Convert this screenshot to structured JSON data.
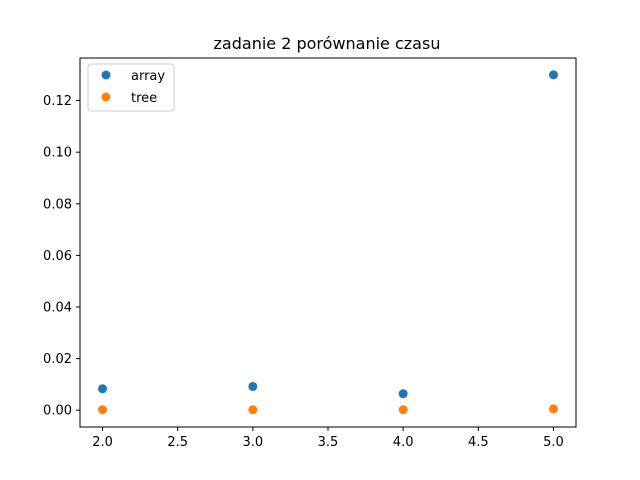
{
  "chart_data": {
    "type": "scatter",
    "title": "zadanie 2 porównanie czasu",
    "xlabel": "",
    "ylabel": "",
    "xlim": [
      1.85,
      5.15
    ],
    "ylim": [
      -0.0065,
      0.1365
    ],
    "x_ticks": [
      2.0,
      2.5,
      3.0,
      3.5,
      4.0,
      4.5,
      5.0
    ],
    "x_tick_labels": [
      "2.0",
      "2.5",
      "3.0",
      "3.5",
      "4.0",
      "4.5",
      "5.0"
    ],
    "y_ticks": [
      0.0,
      0.02,
      0.04,
      0.06,
      0.08,
      0.1,
      0.12
    ],
    "y_tick_labels": [
      "0.00",
      "0.02",
      "0.04",
      "0.06",
      "0.08",
      "0.10",
      "0.12"
    ],
    "grid": false,
    "legend_position": "top-left",
    "series": [
      {
        "name": "array",
        "color": "#1f77b4",
        "x": [
          2,
          3,
          4,
          5
        ],
        "y": [
          0.0083,
          0.0092,
          0.0064,
          0.13
        ]
      },
      {
        "name": "tree",
        "color": "#ff7f0e",
        "x": [
          2,
          3,
          4,
          5
        ],
        "y": [
          0.0002,
          0.0002,
          0.0002,
          0.0005
        ]
      }
    ]
  }
}
